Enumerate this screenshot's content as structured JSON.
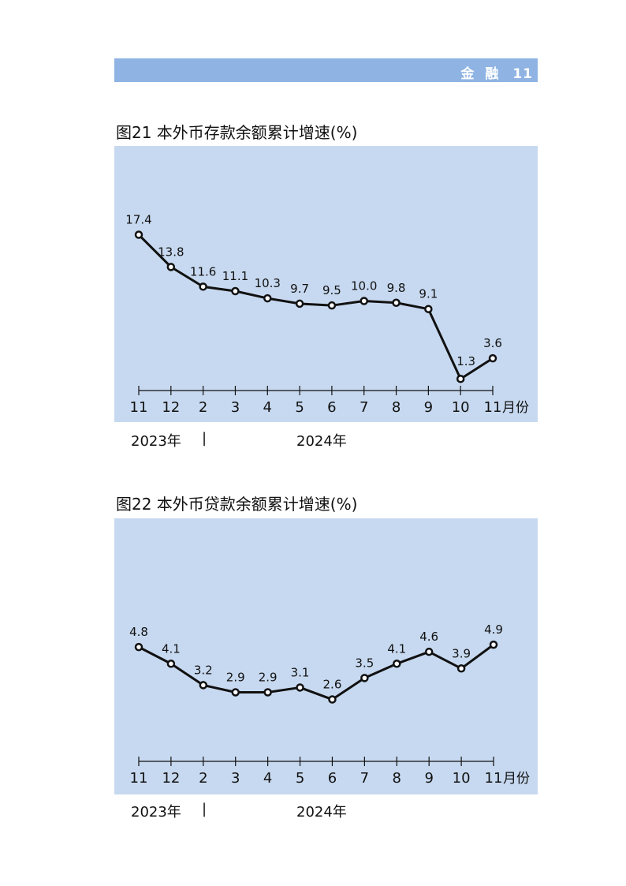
{
  "header": {
    "section": "金融",
    "page": "11"
  },
  "colors": {
    "header_bar": "#8fb4e3",
    "panel": "#c7d9f0",
    "line": "#111111",
    "point_fill": "#ffffff"
  },
  "chart_data": [
    {
      "type": "line",
      "title": "图21  本外币存款余额累计增速(%)",
      "categories": [
        "11",
        "12",
        "2",
        "3",
        "4",
        "5",
        "6",
        "7",
        "8",
        "9",
        "10",
        "11"
      ],
      "x_unit": "月份",
      "values": [
        17.4,
        13.8,
        11.6,
        11.1,
        10.3,
        9.7,
        9.5,
        10.0,
        9.8,
        9.1,
        1.3,
        3.6
      ],
      "labels": [
        "17.4",
        "13.8",
        "11.6",
        "11.1",
        "10.3",
        "9.7",
        "9.5",
        "10.0",
        "9.8",
        "9.1",
        "1.3",
        "3.6"
      ],
      "year_labels": [
        "2023年",
        "|",
        "2024年"
      ],
      "grid": false
    },
    {
      "type": "line",
      "title": "图22  本外币贷款余额累计增速(%)",
      "categories": [
        "11",
        "12",
        "2",
        "3",
        "4",
        "5",
        "6",
        "7",
        "8",
        "9",
        "10",
        "11"
      ],
      "x_unit": "月份",
      "values": [
        4.8,
        4.1,
        3.2,
        2.9,
        2.9,
        3.1,
        2.6,
        3.5,
        4.1,
        4.6,
        3.9,
        4.9
      ],
      "labels": [
        "4.8",
        "4.1",
        "3.2",
        "2.9",
        "2.9",
        "3.1",
        "2.6",
        "3.5",
        "4.1",
        "4.6",
        "3.9",
        "4.9"
      ],
      "year_labels": [
        "2023年",
        "|",
        "2024年"
      ],
      "grid": false
    }
  ]
}
